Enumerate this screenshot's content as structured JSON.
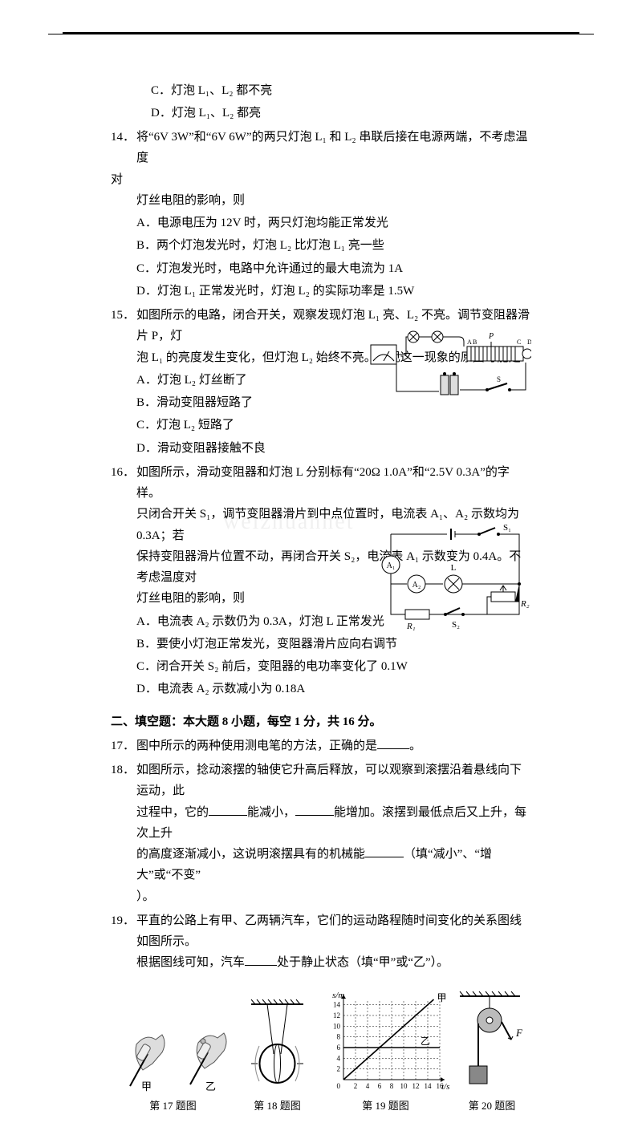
{
  "lead_options": {
    "c": "C．灯泡 L₁、L₂ 都不亮",
    "d": "D．灯泡 L₁、L₂ 都亮"
  },
  "q14": {
    "num": "14．",
    "stem1": "将“6V  3W”和“6V  6W”的两只灯泡 L₁ 和 L₂ 串联后接在电源两端，不考虑温度",
    "stem1b": "对",
    "stem2": "灯丝电阻的影响，则",
    "a": "A．电源电压为 12V 时，两只灯泡均能正常发光",
    "b": "B．两个灯泡发光时，灯泡 L₂ 比灯泡 L₁ 亮一些",
    "c": "C．灯泡发光时，电路中允许通过的最大电流为 1A",
    "d": "D．灯泡 L₁ 正常发光时，灯泡 L₂ 的实际功率是 1.5W"
  },
  "q15": {
    "num": "15．",
    "stem1": "如图所示的电路，闭合开关，观察发现灯泡 L₁ 亮、L₂ 不亮。调节变阻器滑片 P，灯",
    "stem2": "泡 L₁ 的亮度发生变化，但灯泡 L₂ 始终不亮。出现这一现象的原因可能是",
    "a": "A．灯泡 L₂ 灯丝断了",
    "b": "B．滑动变阻器短路了",
    "c": "C．灯泡 L₂ 短路了",
    "d": "D．滑动变阻器接触不良"
  },
  "q16": {
    "num": "16．",
    "stem1": "如图所示，滑动变阻器和灯泡 L 分别标有“20Ω  1.0A”和“2.5V  0.3A”的字样。",
    "stem2": "只闭合开关 S₁，调节变阻器滑片到中点位置时，电流表 A₁、A₂ 示数均为 0.3A；若",
    "stem3": "保持变阻器滑片位置不动，再闭合开关 S₂，电流表 A₁ 示数变为 0.4A。不考虑温度对",
    "stem4": "灯丝电阻的影响，则",
    "a": "A．电流表 A₂ 示数仍为 0.3A，灯泡 L 正常发光",
    "b": "B．要使小灯泡正常发光，变阻器滑片应向右调节",
    "c": "C．闭合开关 S₂ 前后，变阻器的电功率变化了 0.1W",
    "d": "D．电流表 A₂ 示数减小为 0.18A"
  },
  "section2": "二、填空题：本大题 8 小题，每空 1 分，共 16 分。",
  "q17": {
    "num": "17．",
    "t1": "图中所示的两种使用测电笔的方法，正确的是",
    "t2": "。"
  },
  "q18": {
    "num": "18．",
    "t1": "如图所示，捻动滚摆的轴使它升高后释放，可以观察到滚摆沿着悬线向下运动，此",
    "t2": "过程中，它的",
    "t3": "能减小，",
    "t4": "能增加。滚摆到最低点后又上升，每次上升",
    "t5": "的高度逐渐减小，这说明滚摆具有的机械能",
    "t6": "（填“减小”、“增大”或“不变”",
    "t7": "）。"
  },
  "q19": {
    "num": "19．",
    "t1": "平直的公路上有甲、乙两辆汽车，它们的运动路程随时间变化的关系图线如图所示。",
    "t2": "根据图线可知，汽车",
    "t3": "处于静止状态（填“甲”或“乙”）。"
  },
  "figs": {
    "c17": "第 17 题图",
    "l17a": "甲",
    "l17b": "乙",
    "c18": "第 18 题图",
    "c19": "第 19 题图",
    "y": "s/m",
    "x": "t/s",
    "la": "甲",
    "lb": "乙",
    "xticks": [
      2,
      4,
      6,
      8,
      10,
      12,
      14,
      16
    ],
    "yticks": [
      2,
      4,
      6,
      8,
      10,
      12,
      14
    ],
    "c20": "第 20 题图",
    "F": "F"
  },
  "watermark": "weizhuannet"
}
